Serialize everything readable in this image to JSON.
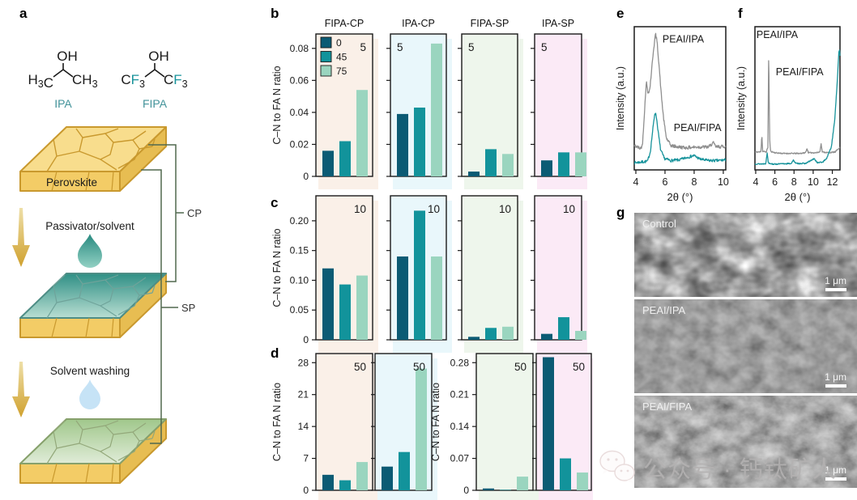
{
  "figure": {
    "panel_labels": {
      "a": "a",
      "b": "b",
      "c": "c",
      "d": "d",
      "e": "e",
      "f": "f",
      "g": "g"
    }
  },
  "panel_a": {
    "molecules": [
      {
        "label": "IPA",
        "oh": "OH",
        "left": [
          {
            "t": "H"
          },
          {
            "t": "3",
            "sub": true
          },
          {
            "t": "C"
          }
        ],
        "right": [
          {
            "t": "C"
          },
          {
            "t": "H"
          },
          {
            "t": "3",
            "sub": true
          }
        ]
      },
      {
        "label": "FIPA",
        "oh": "OH",
        "left": [
          {
            "t": "C"
          },
          {
            "t": "F",
            "f": true
          },
          {
            "t": "3",
            "sub": true
          }
        ],
        "right": [
          {
            "t": "C"
          },
          {
            "t": "F",
            "f": true
          },
          {
            "t": "3",
            "sub": true
          }
        ]
      }
    ],
    "slab_label": "Perovskite",
    "step1": "Passivator/solvent",
    "step2": "Solvent washing",
    "cp": "CP",
    "sp": "SP"
  },
  "colors": {
    "bar_series": [
      "#0b5b74",
      "#12939b",
      "#9ad5bf"
    ],
    "panel_bg": {
      "fipa_cp": "#faf0e8",
      "ipa_cp": "#e9f7fb",
      "fipa_sp": "#eef6ec",
      "ipa_sp": "#fbeaf6"
    },
    "grey": "#8f8f8f",
    "teal": "#17939b",
    "label_teal": "#43939a",
    "gold_dark": "#c9992e",
    "bracket": "#50694f"
  },
  "chart_data": [
    {
      "id": "b",
      "type": "bar",
      "row_note": "5",
      "ylabel": "C–N to FA N ratio",
      "titles": [
        "FIPA-CP",
        "IPA-CP",
        "FIPA-SP",
        "IPA-SP"
      ],
      "legend": {
        "labels": [
          "0",
          "45",
          "75"
        ]
      },
      "ylim": [
        0,
        0.089
      ],
      "yticks": [
        0,
        0.02,
        0.04,
        0.06,
        0.08
      ],
      "ytick_labels": [
        "0",
        "0.02",
        "0.04",
        "0.06",
        "0.08"
      ],
      "groups": [
        {
          "name": "FIPA-CP",
          "bg": "fipa_cp",
          "values": [
            0.016,
            0.022,
            0.054
          ],
          "note_side": "right"
        },
        {
          "name": "IPA-CP",
          "bg": "ipa_cp",
          "values": [
            0.039,
            0.043,
            0.083
          ],
          "note_side": "left"
        },
        {
          "name": "FIPA-SP",
          "bg": "fipa_sp",
          "values": [
            0.003,
            0.017,
            0.014
          ],
          "note_side": "left"
        },
        {
          "name": "IPA-SP",
          "bg": "ipa_sp",
          "values": [
            0.01,
            0.015,
            0.015
          ],
          "note_side": "left"
        }
      ]
    },
    {
      "id": "c",
      "type": "bar",
      "row_note": "10",
      "ylabel": "C–N to FA N ratio",
      "ylim": [
        0,
        0.242
      ],
      "yticks": [
        0,
        0.05,
        0.1,
        0.15,
        0.2
      ],
      "ytick_labels": [
        "0",
        "0.05",
        "0.10",
        "0.15",
        "0.20"
      ],
      "groups": [
        {
          "name": "FIPA-CP",
          "bg": "fipa_cp",
          "values": [
            0.12,
            0.093,
            0.108
          ],
          "note_side": "right"
        },
        {
          "name": "IPA-CP",
          "bg": "ipa_cp",
          "values": [
            0.14,
            0.217,
            0.14
          ],
          "note_side": "right"
        },
        {
          "name": "FIPA-SP",
          "bg": "fipa_sp",
          "values": [
            0.005,
            0.02,
            0.022
          ],
          "note_side": "right"
        },
        {
          "name": "IPA-SP",
          "bg": "ipa_sp",
          "values": [
            0.01,
            0.038,
            0.015
          ],
          "note_side": "right"
        }
      ]
    },
    {
      "id": "d",
      "type": "bar",
      "row_note": "50",
      "clusters": [
        {
          "ylabel": "C–N to FA N ratio",
          "ylim": [
            0,
            30
          ],
          "yticks": [
            0,
            7,
            14,
            21,
            28
          ],
          "ytick_labels": [
            "0",
            "7",
            "14",
            "21",
            "28"
          ],
          "groups": [
            {
              "name": "FIPA-CP",
              "bg": "fipa_cp",
              "values": [
                3.4,
                2.2,
                6.2
              ],
              "note_side": "right"
            },
            {
              "name": "IPA-CP",
              "bg": "ipa_cp",
              "values": [
                5.2,
                8.4,
                26.7
              ],
              "note_side": "right"
            }
          ]
        },
        {
          "ylabel": "C–N to FA N ratio",
          "ylim": [
            0,
            0.3
          ],
          "yticks": [
            0,
            0.07,
            0.14,
            0.21,
            0.28
          ],
          "ytick_labels": [
            "0",
            "0.07",
            "0.14",
            "0.21",
            "0.28"
          ],
          "groups": [
            {
              "name": "FIPA-SP",
              "bg": "fipa_sp",
              "values": [
                0.004,
                0.001,
                0.03
              ],
              "note_side": "right"
            },
            {
              "name": "IPA-SP",
              "bg": "ipa_sp",
              "values": [
                0.292,
                0.07,
                0.039
              ],
              "note_side": "right"
            }
          ]
        }
      ]
    },
    {
      "id": "e",
      "type": "line",
      "xlabel": "2θ (°)",
      "ylabel": "Intensity (a.u.)",
      "xlim": [
        3.89,
        10.17
      ],
      "xticks": [
        4,
        6,
        8,
        10
      ],
      "series": [
        {
          "name": "PEAI/IPA",
          "color_key": "grey",
          "noise": 0.012,
          "seed": 42,
          "points": [
            [
              3.89,
              0.17
            ],
            [
              4.1,
              0.16
            ],
            [
              4.3,
              0.15
            ],
            [
              4.45,
              0.17
            ],
            [
              4.6,
              0.42
            ],
            [
              4.72,
              0.62
            ],
            [
              4.82,
              0.54
            ],
            [
              4.95,
              0.56
            ],
            [
              5.05,
              0.66
            ],
            [
              5.2,
              0.83
            ],
            [
              5.35,
              0.95
            ],
            [
              5.45,
              0.9
            ],
            [
              5.6,
              0.72
            ],
            [
              5.75,
              0.52
            ],
            [
              5.9,
              0.36
            ],
            [
              6.1,
              0.22
            ],
            [
              6.4,
              0.17
            ],
            [
              6.9,
              0.16
            ],
            [
              7.5,
              0.155
            ],
            [
              8.2,
              0.16
            ],
            [
              9.0,
              0.16
            ],
            [
              9.3,
              0.19
            ],
            [
              9.5,
              0.16
            ],
            [
              10.17,
              0.165
            ]
          ]
        },
        {
          "name": "PEAI/FIPA",
          "color_key": "teal",
          "noise": 0.01,
          "seed": 7,
          "points": [
            [
              3.89,
              0.05
            ],
            [
              4.4,
              0.055
            ],
            [
              4.8,
              0.06
            ],
            [
              5.0,
              0.13
            ],
            [
              5.15,
              0.27
            ],
            [
              5.3,
              0.4
            ],
            [
              5.4,
              0.38
            ],
            [
              5.55,
              0.25
            ],
            [
              5.7,
              0.14
            ],
            [
              5.95,
              0.08
            ],
            [
              6.4,
              0.065
            ],
            [
              7.0,
              0.07
            ],
            [
              7.6,
              0.09
            ],
            [
              8.0,
              0.1
            ],
            [
              8.4,
              0.075
            ],
            [
              9.0,
              0.065
            ],
            [
              9.6,
              0.065
            ],
            [
              10.17,
              0.07
            ]
          ]
        }
      ],
      "series_labels": [
        {
          "text": "PEAI/IPA",
          "x": 5.83,
          "y": 0.89
        },
        {
          "text": "PEAI/FIPA",
          "x": 6.6,
          "y": 0.27
        }
      ]
    },
    {
      "id": "f",
      "type": "line",
      "xlabel": "2θ (°)",
      "ylabel": "Intensity (a.u.)",
      "xlim": [
        3.92,
        12.8
      ],
      "xticks": [
        4,
        6,
        8,
        10,
        12
      ],
      "series": [
        {
          "name": "PEAI/IPA",
          "color_key": "grey",
          "noise": 0.004,
          "seed": 11,
          "points": [
            [
              3.92,
              0.125
            ],
            [
              4.4,
              0.125
            ],
            [
              4.55,
              0.13
            ],
            [
              4.64,
              0.245
            ],
            [
              4.73,
              0.13
            ],
            [
              5.1,
              0.125
            ],
            [
              5.28,
              0.16
            ],
            [
              5.36,
              0.865
            ],
            [
              5.45,
              0.22
            ],
            [
              5.55,
              0.13
            ],
            [
              6.0,
              0.12
            ],
            [
              6.8,
              0.115
            ],
            [
              7.6,
              0.115
            ],
            [
              8.6,
              0.115
            ],
            [
              9.2,
              0.12
            ],
            [
              9.35,
              0.15
            ],
            [
              9.5,
              0.12
            ],
            [
              10.3,
              0.12
            ],
            [
              10.7,
              0.125
            ],
            [
              10.82,
              0.185
            ],
            [
              10.95,
              0.125
            ],
            [
              11.6,
              0.12
            ],
            [
              12.3,
              0.125
            ],
            [
              12.65,
              0.15
            ],
            [
              12.8,
              0.155
            ]
          ]
        },
        {
          "name": "PEAI/FIPA",
          "color_key": "teal",
          "noise": 0.004,
          "seed": 13,
          "points": [
            [
              3.92,
              0.042
            ],
            [
              4.7,
              0.042
            ],
            [
              5.05,
              0.045
            ],
            [
              5.2,
              0.12
            ],
            [
              5.32,
              0.05
            ],
            [
              5.8,
              0.04
            ],
            [
              6.6,
              0.042
            ],
            [
              7.7,
              0.045
            ],
            [
              7.95,
              0.068
            ],
            [
              8.2,
              0.045
            ],
            [
              9.2,
              0.045
            ],
            [
              9.75,
              0.065
            ],
            [
              10.1,
              0.078
            ],
            [
              10.45,
              0.05
            ],
            [
              11.0,
              0.055
            ],
            [
              11.4,
              0.08
            ],
            [
              11.9,
              0.16
            ],
            [
              12.25,
              0.35
            ],
            [
              12.5,
              0.6
            ],
            [
              12.68,
              0.82
            ],
            [
              12.76,
              0.835
            ],
            [
              12.8,
              0.8
            ]
          ]
        }
      ],
      "series_labels": [
        {
          "text": "PEAI/IPA",
          "x": 4.08,
          "y": 0.92
        },
        {
          "text": "PEAI/FIPA",
          "x": 6.1,
          "y": 0.66
        }
      ]
    }
  ],
  "sem": {
    "images": [
      {
        "label": "Control",
        "scale_label": "1 μm"
      },
      {
        "label": "PEAI/IPA",
        "scale_label": "1 μm"
      },
      {
        "label": "PEAI/FIPA",
        "scale_label": "1 μm"
      }
    ]
  },
  "watermark": {
    "text": "公众号 · 钙钛矿人"
  }
}
